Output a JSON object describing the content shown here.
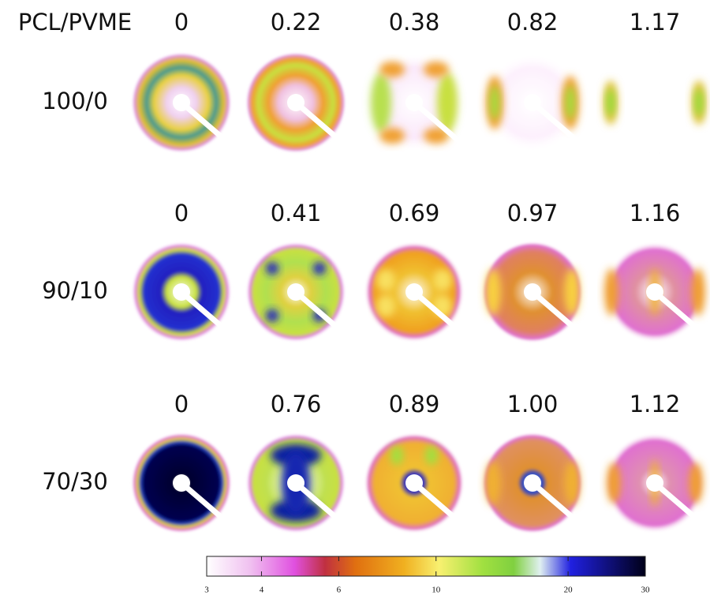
{
  "header": "PCL/PVME",
  "rows": [
    {
      "label": "100/0",
      "values": [
        "0",
        "0.22",
        "0.38",
        "0.82",
        "1.17"
      ]
    },
    {
      "label": "90/10",
      "values": [
        "0",
        "0.41",
        "0.69",
        "0.97",
        "1.16"
      ]
    },
    {
      "label": "70/30",
      "values": [
        "0",
        "0.76",
        "0.89",
        "1.00",
        "1.12"
      ]
    }
  ],
  "colorbar": {
    "lim": [
      3,
      30
    ],
    "ticks": [
      3,
      4,
      6,
      10,
      20,
      30
    ],
    "log": true
  }
}
